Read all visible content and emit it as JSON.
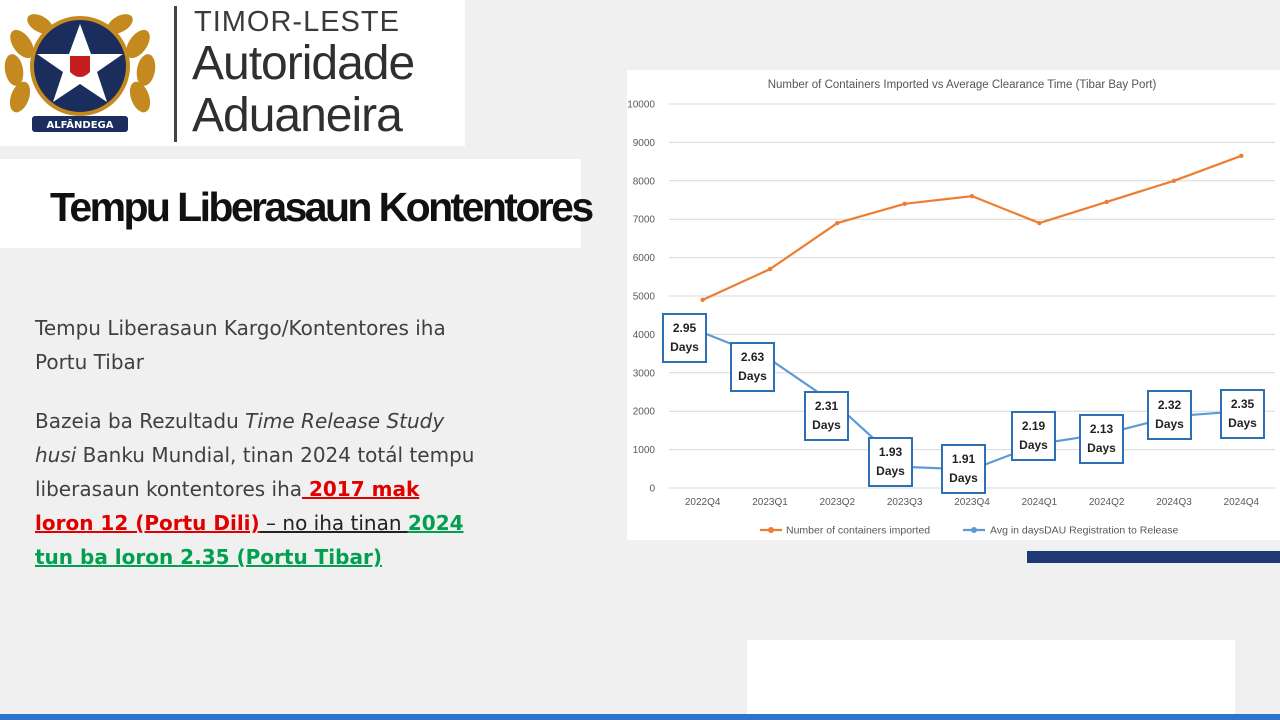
{
  "logo": {
    "country": "TIMOR-LESTE",
    "line1": "Autoridade",
    "line2": "Aduaneira",
    "emblem_label": "ALFÂNDEGA"
  },
  "slide": {
    "title": "Tempu Liberasaun Kontentores",
    "p1": "Tempu Liberasaun Kargo/Kontentores iha Portu Tibar",
    "p2_a": "Bazeia ba Rezultadu ",
    "p2_italic": "Time Release Study husi",
    "p2_b": " Banku Mundial, tinan 2024 totál tempu liberasaun kontentores iha",
    "p2_red": " 2017 mak loron 12 (Portu Dili)",
    "p2_dash": " – no iha tinan ",
    "p2_green": "2024 tun ba loron 2.35 (Portu Tibar)"
  },
  "colors": {
    "orange": "#ed7d31",
    "blue": "#5b9bd5",
    "navy": "#1f3a73",
    "red": "#e00000",
    "green": "#00a050"
  },
  "chart_data": {
    "type": "line",
    "title": "Number of Containers Imported vs Average Clearance Time (Tibar Bay Port)",
    "categories": [
      "2022Q4",
      "2023Q1",
      "2023Q2",
      "2023Q3",
      "2023Q4",
      "2024Q1",
      "2024Q2",
      "2024Q3",
      "2024Q4"
    ],
    "ylim": [
      0,
      10000
    ],
    "yticks": [
      "0",
      "1000",
      "2000",
      "3000",
      "4000",
      "5000",
      "6000",
      "7000",
      "8000",
      "9000",
      "10000"
    ],
    "series": [
      {
        "name": "Number of containers imported",
        "values": [
          4900,
          5700,
          6900,
          7400,
          7600,
          6900,
          7450,
          8000,
          8650
        ]
      },
      {
        "name": "Avg in daysDAU Registration to Release",
        "values": [
          2.95,
          2.63,
          2.31,
          1.93,
          1.91,
          2.19,
          2.13,
          2.32,
          2.35
        ]
      }
    ],
    "series2_plot_values": [
      4050,
      3350,
      2150,
      550,
      480,
      1150,
      1420,
      1870,
      2000
    ],
    "data_labels": [
      "2.95",
      "2.63",
      "2.31",
      "1.93",
      "1.91",
      "2.19",
      "2.13",
      "2.32",
      "2.35"
    ],
    "data_label_unit": "Days",
    "legend_position": "bottom",
    "grid": true
  }
}
